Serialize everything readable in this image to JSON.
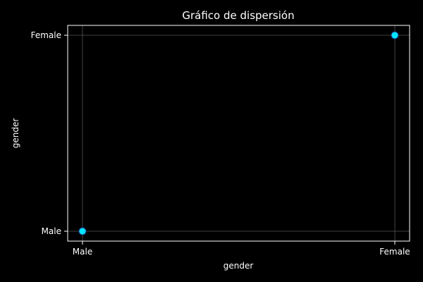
{
  "chart_data": {
    "type": "scatter",
    "title": "Gráfico de dispersión",
    "xlabel": "gender",
    "ylabel": "gender",
    "x_categories": [
      "Male",
      "Female"
    ],
    "y_categories": [
      "Male",
      "Female"
    ],
    "points": [
      {
        "x": "Male",
        "y": "Male"
      },
      {
        "x": "Female",
        "y": "Female"
      }
    ],
    "grid": true,
    "colors": {
      "background": "#000000",
      "axes": "#ffffff",
      "grid": "#555555",
      "marker_fill": "#00e5ff",
      "marker_edge": "#1f3a8a",
      "text": "#ffffff"
    }
  }
}
